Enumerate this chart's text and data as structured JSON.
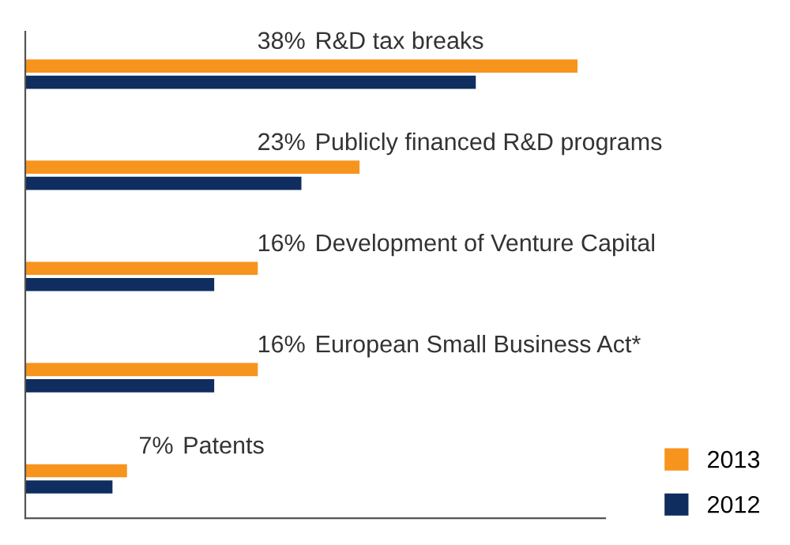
{
  "chart_data": {
    "type": "bar",
    "orientation": "horizontal",
    "categories": [
      "R&D tax breaks",
      "Publicly financed R&D programs",
      "Development of Venture Capital",
      "European Small Business Act*",
      "Patents"
    ],
    "series": [
      {
        "name": "2013",
        "color": "#f7941d",
        "values": [
          38,
          23,
          16,
          16,
          7
        ],
        "value_labels": [
          "38%",
          "23%",
          "16%",
          "16%",
          "7%"
        ]
      },
      {
        "name": "2012",
        "color": "#0f2d5e",
        "values": [
          31,
          19,
          13,
          13,
          6
        ]
      }
    ],
    "tick_labels": false,
    "legend": "bottom right"
  }
}
